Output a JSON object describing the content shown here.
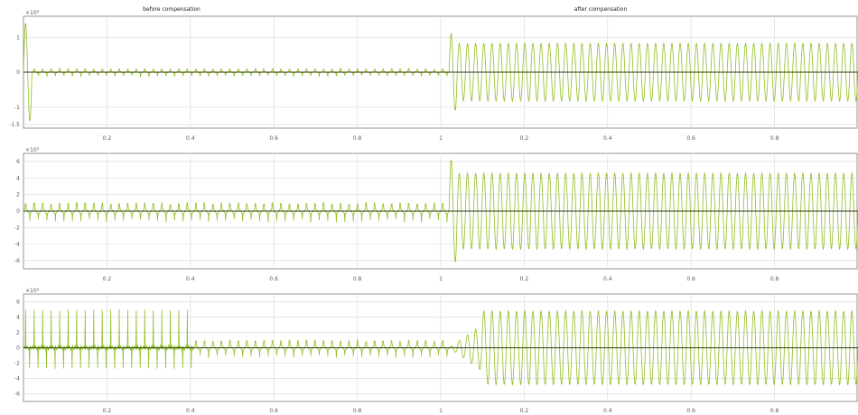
{
  "annotations": {
    "before": "before compensation",
    "after": "after compensation"
  },
  "colors": {
    "signal": "#8fbf23",
    "zero_line": "#2f3d12",
    "grid": "#dddddd",
    "axis": "#7a7a7a",
    "background": "#ffffff"
  },
  "chart_data": [
    {
      "type": "line",
      "name": "panel-1",
      "multiplier": "×10³",
      "x_ticks": [
        "0.2",
        "0.4",
        "0.6",
        "0.8",
        "1",
        "0.2",
        "0.4",
        "0.6",
        "0.8"
      ],
      "y_ticks": [
        "1",
        "0",
        "-1",
        "-1.5"
      ],
      "ylim": [
        -1.6,
        1.6
      ],
      "grid": true,
      "series": [
        {
          "segments": [
            {
              "x0": 0.0,
              "x1": 0.02,
              "a": 1.4,
              "decay": 0.4,
              "spikes": false
            },
            {
              "x0": 0.02,
              "x1": 1.0,
              "a": 0.12,
              "decay": 1.0,
              "spikes": true
            },
            {
              "x0": 1.0,
              "x1": 1.02,
              "a": 1.1,
              "decay": 0.6,
              "spikes": false
            },
            {
              "x0": 1.02,
              "x1": 2.0,
              "a": 0.82,
              "decay": 1.0,
              "spikes": false
            }
          ]
        }
      ]
    },
    {
      "type": "line",
      "name": "panel-2",
      "multiplier": "×10³",
      "x_ticks": [
        "0.2",
        "0.4",
        "0.6",
        "0.8",
        "1",
        "0.2",
        "0.4",
        "0.6",
        "0.8"
      ],
      "y_ticks": [
        "6",
        "4",
        "2",
        "0",
        "-2",
        "-4",
        "-6"
      ],
      "ylim": [
        -7,
        7
      ],
      "grid": true,
      "series": [
        {
          "segments": [
            {
              "x0": 0.0,
              "x1": 1.0,
              "a": 1.2,
              "decay": 1.0,
              "spikes": true
            },
            {
              "x0": 1.0,
              "x1": 1.02,
              "a": 6.2,
              "decay": 0.6,
              "spikes": false
            },
            {
              "x0": 1.02,
              "x1": 2.0,
              "a": 4.6,
              "decay": 1.0,
              "spikes": false
            }
          ]
        }
      ]
    },
    {
      "type": "line",
      "name": "panel-3",
      "multiplier": "×10³",
      "x_ticks": [
        "0.2",
        "0.4",
        "0.6",
        "0.8",
        "1",
        "0.2",
        "0.4",
        "0.6",
        "0.8"
      ],
      "y_ticks": [
        "6",
        "4",
        "2",
        "0",
        "-2",
        "-4",
        "-6"
      ],
      "ylim": [
        -7,
        7
      ],
      "grid": true,
      "series": [
        {
          "segments": [
            {
              "x0": 0.0,
              "x1": 0.4,
              "a": 5.2,
              "decay": 1.0,
              "spikes": true
            },
            {
              "x0": 0.4,
              "x1": 1.0,
              "a": 1.2,
              "decay": 1.0,
              "spikes": true
            },
            {
              "x0": 1.0,
              "x1": 1.08,
              "a": 3.0,
              "decay": 1.0,
              "spikes": false
            },
            {
              "x0": 1.08,
              "x1": 2.0,
              "a": 4.8,
              "decay": 1.0,
              "spikes": false
            }
          ]
        }
      ]
    }
  ]
}
